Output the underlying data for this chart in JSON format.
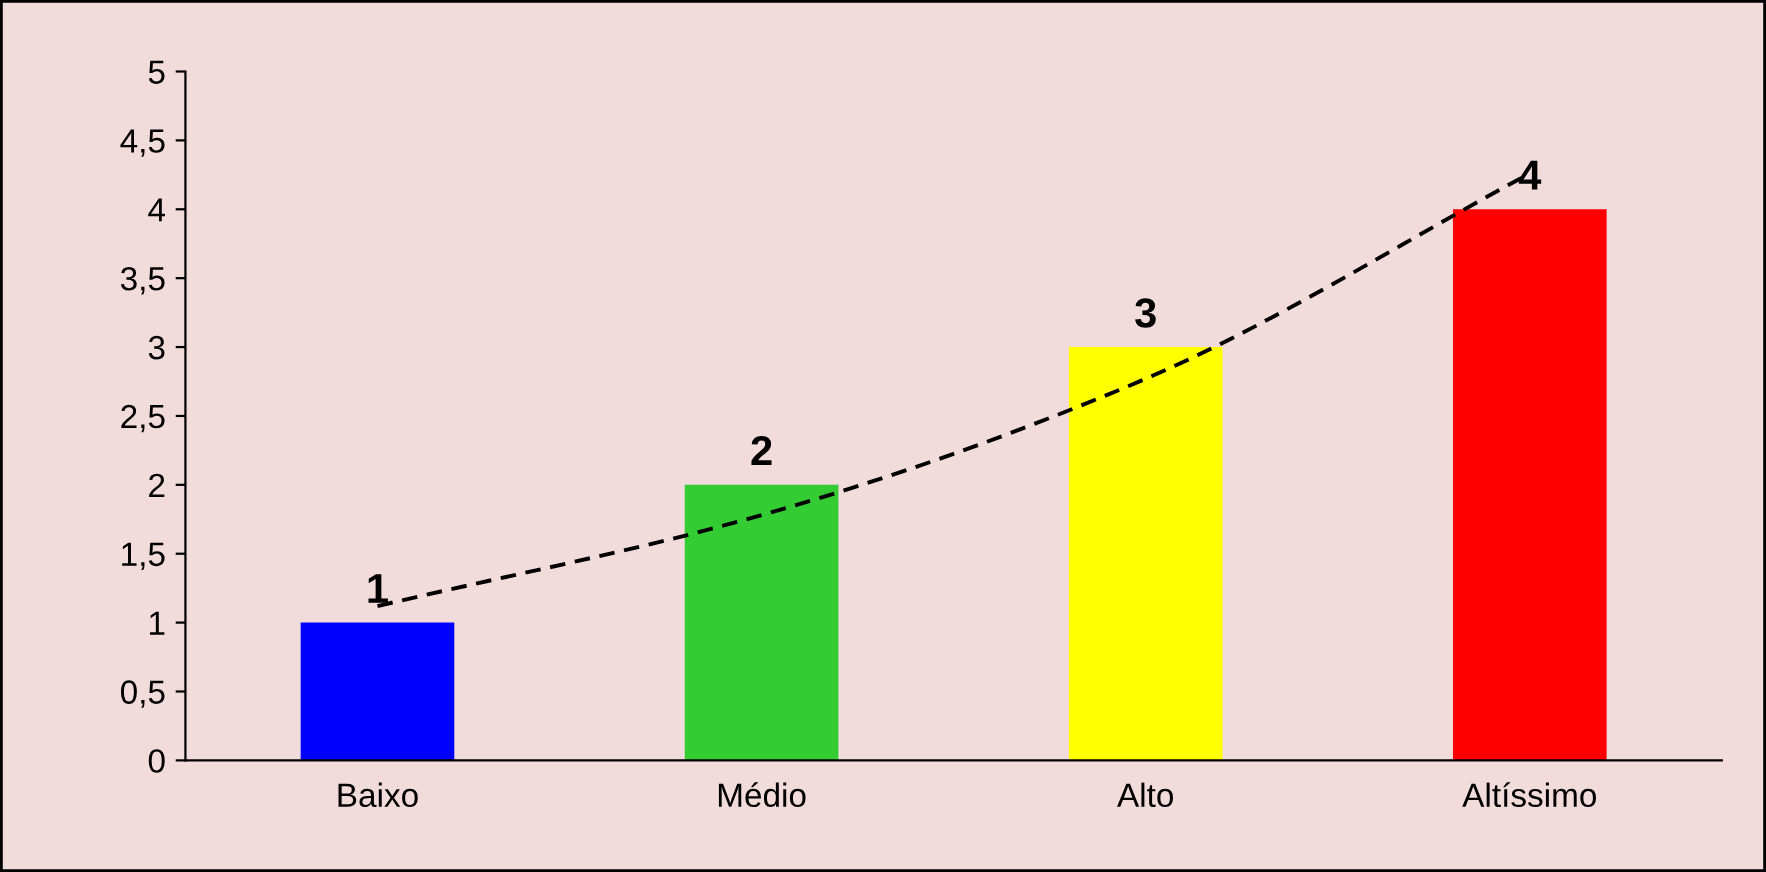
{
  "chart_data": {
    "type": "bar",
    "categories": [
      "Baixo",
      "Médio",
      "Alto",
      "Altíssimo"
    ],
    "series": [
      {
        "values": [
          1,
          2,
          3,
          4
        ],
        "value_labels": [
          "1",
          "2",
          "3",
          "4"
        ],
        "colors": [
          "#0000ff",
          "#33cc33",
          "#ffff00",
          "#ff0000"
        ]
      },
      {
        "type": "line",
        "values": [
          1.12,
          1.78,
          2.77,
          4.26
        ],
        "color": "#000000",
        "line_style": "dashed",
        "marker": "none"
      }
    ],
    "ylim": [
      0,
      5
    ],
    "yticks": [
      0,
      {
        "value": 0.5,
        "label": "0,5"
      },
      1,
      {
        "value": 1.5,
        "label": "1,5"
      },
      2,
      {
        "value": 2.5,
        "label": "2,5"
      },
      3,
      {
        "value": 3.5,
        "label": "3,5"
      },
      4,
      {
        "value": 4.5,
        "label": "4,5"
      },
      5
    ],
    "grid": false,
    "legend": false
  }
}
